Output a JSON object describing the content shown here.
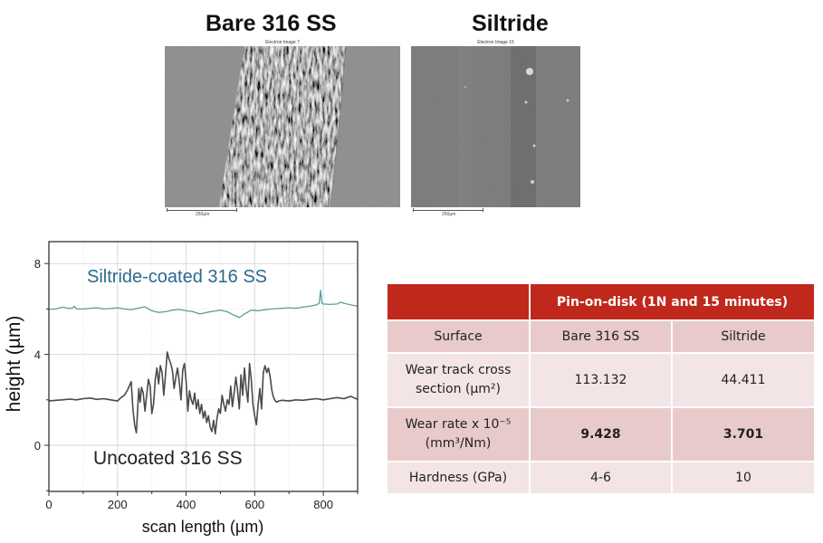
{
  "sem_images": [
    {
      "title": "Bare 316 SS",
      "caption": "Electron Image 7",
      "scale_label": "250µm"
    },
    {
      "title": "Siltride",
      "caption": "Electron Image 15",
      "scale_label": "250µm"
    }
  ],
  "table": {
    "header": "Pin-on-disk (1N and 15 minutes)",
    "columns": [
      "Surface",
      "Bare 316 SS",
      "Siltride"
    ],
    "rows": [
      {
        "label_line1": "Wear track cross",
        "label_line2": "section (µm²)",
        "bare": "113.132",
        "siltride": "44.411"
      },
      {
        "label_line1": "Wear rate x 10⁻⁵",
        "label_line2": "(mm³/Nm)",
        "bare": "9.428",
        "siltride": "3.701"
      },
      {
        "label": "Hardness (GPa)",
        "bare": "4-6",
        "siltride": "10"
      }
    ]
  },
  "chart_data": {
    "type": "line",
    "title": "",
    "xlabel": "scan length (µm)",
    "ylabel": "height (µm)",
    "xlim": [
      0,
      900
    ],
    "ylim": [
      -2.1,
      9.0
    ],
    "xticks": [
      0,
      200,
      400,
      600,
      800
    ],
    "yticks": [
      0,
      4,
      8
    ],
    "grid": true,
    "annotations": [
      {
        "text": "Siltride-coated 316 SS",
        "x": 380,
        "y": 7.5,
        "color": "#2a6a8e"
      },
      {
        "text": "Uncoated 316 SS",
        "x": 370,
        "y": -0.6,
        "color": "#222222"
      }
    ],
    "series": [
      {
        "name": "Siltride-coated 316 SS",
        "color": "#5b9c9c",
        "x": [
          0,
          20,
          40,
          60,
          70,
          75,
          80,
          100,
          120,
          140,
          160,
          180,
          200,
          220,
          240,
          260,
          280,
          300,
          320,
          340,
          360,
          380,
          400,
          420,
          440,
          460,
          480,
          500,
          520,
          540,
          555,
          570,
          590,
          610,
          630,
          650,
          670,
          700,
          720,
          740,
          760,
          780,
          788,
          792,
          796,
          800,
          820,
          840,
          850,
          860,
          880,
          900
        ],
        "y": [
          5.98,
          6.0,
          6.08,
          6.02,
          6.05,
          6.12,
          6.0,
          6.0,
          6.03,
          6.05,
          6.0,
          6.02,
          6.05,
          6.0,
          5.97,
          6.03,
          6.1,
          5.92,
          5.85,
          5.88,
          5.95,
          5.98,
          5.92,
          5.88,
          5.78,
          5.85,
          5.9,
          5.95,
          5.88,
          5.72,
          5.62,
          5.78,
          5.95,
          5.92,
          5.97,
          6.0,
          6.02,
          6.05,
          6.03,
          6.08,
          6.12,
          6.18,
          6.25,
          6.82,
          6.25,
          6.22,
          6.2,
          6.22,
          6.3,
          6.25,
          6.18,
          6.12
        ]
      },
      {
        "name": "Uncoated 316 SS",
        "color": "#4a4a4a",
        "x": [
          0,
          20,
          40,
          60,
          80,
          100,
          120,
          140,
          160,
          180,
          200,
          210,
          220,
          230,
          240,
          245,
          250,
          255,
          258,
          262,
          266,
          270,
          275,
          280,
          285,
          290,
          295,
          300,
          305,
          310,
          315,
          320,
          325,
          330,
          335,
          340,
          345,
          350,
          355,
          360,
          365,
          370,
          375,
          380,
          385,
          390,
          395,
          400,
          405,
          410,
          415,
          420,
          425,
          430,
          435,
          440,
          445,
          450,
          455,
          460,
          465,
          470,
          475,
          480,
          485,
          490,
          495,
          500,
          505,
          510,
          515,
          520,
          525,
          530,
          535,
          540,
          545,
          550,
          555,
          560,
          565,
          570,
          575,
          580,
          585,
          590,
          595,
          600,
          605,
          610,
          615,
          620,
          625,
          630,
          635,
          640,
          645,
          650,
          655,
          660,
          665,
          670,
          680,
          700,
          720,
          740,
          760,
          780,
          800,
          820,
          840,
          860,
          880,
          900
        ],
        "y": [
          1.95,
          1.98,
          2.0,
          2.03,
          2.0,
          2.05,
          2.08,
          2.02,
          2.05,
          2.0,
          1.95,
          2.1,
          2.2,
          2.45,
          2.8,
          1.6,
          0.9,
          0.55,
          1.4,
          2.5,
          1.9,
          2.55,
          2.3,
          1.5,
          2.2,
          2.9,
          2.6,
          1.4,
          1.8,
          2.9,
          3.4,
          2.7,
          3.5,
          3.2,
          2.2,
          3.1,
          4.1,
          3.8,
          3.6,
          3.3,
          2.5,
          3.0,
          3.4,
          2.8,
          2.0,
          3.3,
          3.6,
          2.8,
          1.5,
          2.4,
          2.0,
          1.8,
          2.3,
          1.6,
          2.0,
          1.4,
          1.8,
          1.2,
          1.5,
          1.0,
          1.3,
          0.8,
          0.6,
          1.1,
          0.5,
          1.2,
          1.6,
          1.4,
          2.2,
          1.8,
          1.5,
          2.0,
          1.8,
          2.6,
          1.7,
          2.3,
          3.0,
          2.4,
          1.6,
          3.1,
          2.2,
          3.4,
          2.5,
          1.9,
          3.6,
          2.9,
          1.8,
          1.3,
          0.9,
          1.8,
          2.5,
          1.6,
          3.2,
          3.5,
          3.2,
          3.4,
          3.0,
          2.4,
          2.1,
          1.95,
          1.9,
          1.95,
          1.98,
          1.95,
          2.0,
          1.98,
          2.02,
          2.05,
          2.0,
          2.05,
          2.1,
          2.05,
          2.15,
          2.02
        ]
      }
    ]
  }
}
